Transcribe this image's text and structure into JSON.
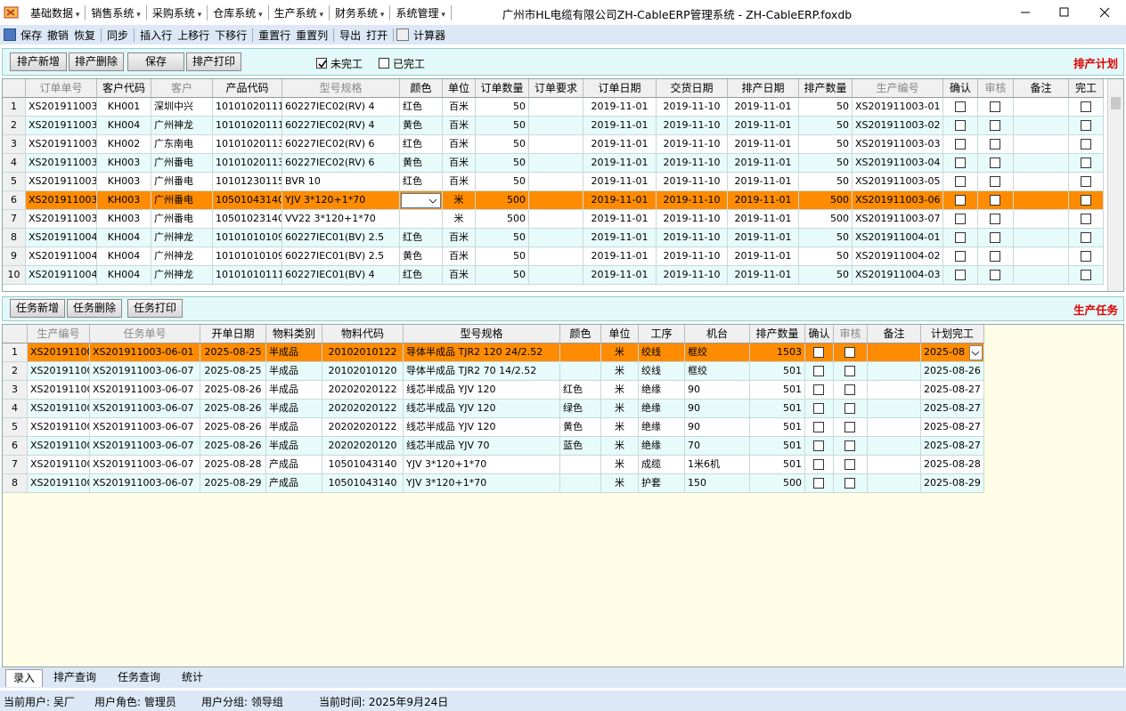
{
  "window": {
    "title": "广州市HL电缆有限公司ZH-CableERP管理系统 - ZH-CableERP.foxdb"
  },
  "menu": [
    "基础数据",
    "销售系统",
    "采购系统",
    "仓库系统",
    "生产系统",
    "财务系统",
    "系统管理"
  ],
  "toolbar": [
    "保存",
    "撤销",
    "恢复",
    "同步",
    "插入行",
    "上移行",
    "下移行",
    "重置行",
    "重置列",
    "导出",
    "打开",
    "计算器"
  ],
  "plan": {
    "buttons": [
      "排产新增",
      "排产删除",
      "保存",
      "排产打印"
    ],
    "filters": [
      {
        "label": "未完工",
        "checked": true
      },
      {
        "label": "已完工",
        "checked": false
      }
    ],
    "heading": "排产计划",
    "selected_row": 5,
    "columns": [
      "订单单号",
      "客户代码",
      "客户",
      "产品代码",
      "型号规格",
      "颜色",
      "单位",
      "订单数量",
      "订单要求",
      "订单日期",
      "交货日期",
      "排产日期",
      "排产数量",
      "生产编号",
      "确认",
      "审核",
      "备注",
      "完工"
    ],
    "rows": [
      [
        1,
        "XS201911003",
        "KH001",
        "深圳中兴",
        "10101020111",
        "60227IEC02(RV) 4",
        "红色",
        "百米",
        50,
        null,
        "2019-11-01",
        "2019-11-10",
        "2019-11-01",
        50,
        "XS201911003-01",
        false,
        false,
        null,
        false
      ],
      [
        2,
        "XS201911003",
        "KH004",
        "广州神龙",
        "10101020111",
        "60227IEC02(RV) 4",
        "黄色",
        "百米",
        50,
        null,
        "2019-11-01",
        "2019-11-10",
        "2019-11-01",
        50,
        "XS201911003-02",
        false,
        false,
        null,
        false
      ],
      [
        3,
        "XS201911003",
        "KH002",
        "广东南电",
        "10101020113",
        "60227IEC02(RV) 6",
        "红色",
        "百米",
        50,
        null,
        "2019-11-01",
        "2019-11-10",
        "2019-11-01",
        50,
        "XS201911003-03",
        false,
        false,
        null,
        false
      ],
      [
        4,
        "XS201911003",
        "KH003",
        "广州番电",
        "10101020113",
        "60227IEC02(RV) 6",
        "黄色",
        "百米",
        50,
        null,
        "2019-11-01",
        "2019-11-10",
        "2019-11-01",
        50,
        "XS201911003-04",
        false,
        false,
        null,
        false
      ],
      [
        5,
        "XS201911003",
        "KH003",
        "广州番电",
        "10101230115",
        "BVR 10",
        "红色",
        "百米",
        50,
        null,
        "2019-11-01",
        "2019-11-10",
        "2019-11-01",
        50,
        "XS201911003-05",
        false,
        false,
        null,
        false
      ],
      [
        6,
        "XS201911003",
        "KH003",
        "广州番电",
        "10501043140",
        "YJV 3*120+1*70",
        null,
        "米",
        500,
        null,
        "2019-11-01",
        "2019-11-10",
        "2019-11-01",
        500,
        "XS201911003-06",
        false,
        false,
        null,
        false
      ],
      [
        7,
        "XS201911003",
        "KH003",
        "广州番电",
        "10501023140",
        "VV22 3*120+1*70",
        null,
        "米",
        500,
        null,
        "2019-11-01",
        "2019-11-10",
        "2019-11-01",
        500,
        "XS201911003-07",
        false,
        false,
        null,
        false
      ],
      [
        8,
        "XS201911004",
        "KH004",
        "广州神龙",
        "10101010109",
        "60227IEC01(BV) 2.5",
        "红色",
        "百米",
        50,
        null,
        "2019-11-01",
        "2019-11-10",
        "2019-11-01",
        50,
        "XS201911004-01",
        false,
        false,
        null,
        false
      ],
      [
        9,
        "XS201911004",
        "KH004",
        "广州神龙",
        "10101010109",
        "60227IEC01(BV) 2.5",
        "黄色",
        "百米",
        50,
        null,
        "2019-11-01",
        "2019-11-10",
        "2019-11-01",
        50,
        "XS201911004-02",
        false,
        false,
        null,
        false
      ],
      [
        10,
        "XS201911004",
        "KH004",
        "广州神龙",
        "10101010111",
        "60227IEC01(BV) 4",
        "红色",
        "百米",
        50,
        null,
        "2019-11-01",
        "2019-11-10",
        "2019-11-01",
        50,
        "XS201911004-03",
        false,
        false,
        null,
        false
      ]
    ]
  },
  "task": {
    "buttons": [
      "任务新增",
      "任务删除",
      "任务打印"
    ],
    "heading": "生产任务",
    "selected_row": 0,
    "columns": [
      "生产编号",
      "任务单号",
      "开单日期",
      "物料类别",
      "物料代码",
      "型号规格",
      "颜色",
      "单位",
      "工序",
      "机台",
      "排产数量",
      "确认",
      "审核",
      "备注",
      "计划完工"
    ],
    "rows": [
      [
        1,
        "XS20191100",
        "XS201911003-06-01",
        "2025-08-25",
        "半成品",
        "20102010122",
        "导体半成品 TJR2 120 24/2.52",
        null,
        "米",
        "绞线",
        "框绞",
        1503,
        false,
        false,
        null,
        "2025-08"
      ],
      [
        2,
        "XS20191100",
        "XS201911003-06-07",
        "2025-08-25",
        "半成品",
        "20102010120",
        "导体半成品 TJR2 70 14/2.52",
        null,
        "米",
        "绞线",
        "框绞",
        501,
        false,
        false,
        null,
        "2025-08-26"
      ],
      [
        3,
        "XS20191100",
        "XS201911003-06-07",
        "2025-08-26",
        "半成品",
        "20202020122",
        "线芯半成品 YJV 120",
        "红色",
        "米",
        "绝缘",
        "90",
        501,
        false,
        false,
        null,
        "2025-08-27"
      ],
      [
        4,
        "XS20191100",
        "XS201911003-06-07",
        "2025-08-26",
        "半成品",
        "20202020122",
        "线芯半成品 YJV 120",
        "绿色",
        "米",
        "绝缘",
        "90",
        501,
        false,
        false,
        null,
        "2025-08-27"
      ],
      [
        5,
        "XS20191100",
        "XS201911003-06-07",
        "2025-08-26",
        "半成品",
        "20202020122",
        "线芯半成品 YJV 120",
        "黄色",
        "米",
        "绝缘",
        "90",
        501,
        false,
        false,
        null,
        "2025-08-27"
      ],
      [
        6,
        "XS20191100",
        "XS201911003-06-07",
        "2025-08-26",
        "半成品",
        "20202020120",
        "线芯半成品 YJV 70",
        "蓝色",
        "米",
        "绝缘",
        "70",
        501,
        false,
        false,
        null,
        "2025-08-27"
      ],
      [
        7,
        "XS20191100",
        "XS201911003-06-07",
        "2025-08-28",
        "产成品",
        "10501043140",
        "YJV 3*120+1*70",
        null,
        "米",
        "成缆",
        "1米6机",
        501,
        false,
        false,
        null,
        "2025-08-28"
      ],
      [
        8,
        "XS20191100",
        "XS201911003-06-07",
        "2025-08-29",
        "产成品",
        "10501043140",
        "YJV 3*120+1*70",
        null,
        "米",
        "护套",
        "150",
        500,
        false,
        false,
        null,
        "2025-08-29"
      ]
    ]
  },
  "tabs": [
    "录入",
    "排产查询",
    "任务查询",
    "统计"
  ],
  "active_tab": 0,
  "status": [
    "当前用户: 吴厂",
    "用户角色: 管理员",
    "用户分组: 领导组",
    "当前时间: 2025年9月24日"
  ]
}
